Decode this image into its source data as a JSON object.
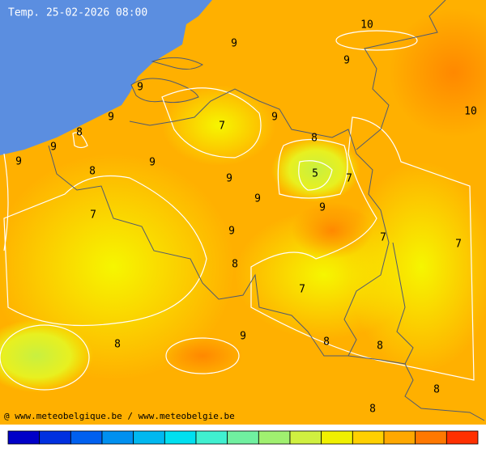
{
  "header": {
    "title": "Temp. 25-02-2026 08:00"
  },
  "credit": "@ www.meteobelgique.be / www.meteobelgie.be",
  "contour_labels": [
    10,
    9,
    9,
    9,
    10,
    9,
    7,
    9,
    8,
    8,
    9,
    9,
    9,
    8,
    5,
    7,
    9,
    9,
    9,
    7,
    9,
    7,
    7,
    8,
    7,
    9,
    8,
    8,
    8,
    8,
    8
  ],
  "colorbar": {
    "colors": [
      "#0000c8",
      "#0030e0",
      "#0060f0",
      "#0090f0",
      "#00b8f0",
      "#00e0f0",
      "#40f0d0",
      "#70f0a0",
      "#a0f070",
      "#d0f040",
      "#f0f000",
      "#ffd000",
      "#ffa800",
      "#ff7800",
      "#ff3000"
    ]
  }
}
